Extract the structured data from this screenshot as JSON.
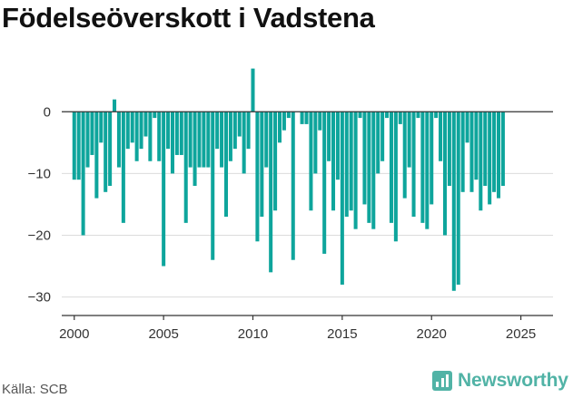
{
  "title": "Födelseöverskott i Vadstena",
  "source": "Källa: SCB",
  "brand": {
    "name": "Newsworthy",
    "icon": "bar-chart-icon",
    "color": "#51b3a6"
  },
  "chart_data": {
    "type": "bar",
    "title": "Födelseöverskott i Vadstena",
    "xlabel": "",
    "ylabel": "",
    "x_start": 2000.0,
    "x_step": 0.25,
    "values": [
      -11,
      -11,
      -20,
      -9,
      -7,
      -14,
      -5,
      -13,
      -12,
      2,
      -9,
      -18,
      -6,
      -5,
      -8,
      -6,
      -4,
      -8,
      -1,
      -8,
      -25,
      -6,
      -10,
      -7,
      -7,
      -18,
      -9,
      -12,
      -9,
      -9,
      -9,
      -24,
      -6,
      -9,
      -17,
      -8,
      -6,
      -4,
      -10,
      -6,
      7,
      -21,
      -17,
      -9,
      -26,
      -16,
      -5,
      -3,
      -1,
      -24,
      0,
      -2,
      -2,
      -16,
      -10,
      -3,
      -23,
      -8,
      -16,
      -11,
      -28,
      -17,
      -16,
      -19,
      -1,
      -15,
      -18,
      -19,
      -10,
      -8,
      -1,
      -18,
      -21,
      -2,
      -14,
      -9,
      -17,
      -1,
      -18,
      -19,
      -15,
      -1,
      -8,
      -20,
      -12,
      -29,
      -28,
      -13,
      -5,
      -13,
      -11,
      -16,
      -12,
      -15,
      -13,
      -14,
      -12
    ],
    "bar_color": "#0ea59c",
    "ylim": [
      -33,
      9
    ],
    "yticks": [
      0,
      -10,
      -20,
      -30
    ],
    "xlim": [
      1999.3,
      2026.8
    ],
    "xticks": [
      2000,
      2005,
      2010,
      2015,
      2020,
      2025
    ],
    "grid": true
  }
}
